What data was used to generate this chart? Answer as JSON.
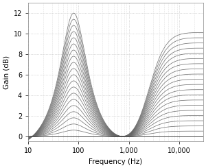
{
  "title": "",
  "xlabel": "Frequency (Hz)",
  "ylabel": "Gain (dB)",
  "xlim": [
    10,
    30000
  ],
  "ylim": [
    -0.5,
    13
  ],
  "yticks": [
    0,
    2,
    4,
    6,
    8,
    10,
    12
  ],
  "xticks": [
    10,
    100,
    1000,
    10000
  ],
  "xticklabels": [
    "10",
    "100",
    "1,000",
    "10,000"
  ],
  "num_curves": 20,
  "max_gain_low": 12.0,
  "low_peak_freq": 80,
  "null_freq": 800,
  "high_rise_freq": 2500,
  "high_rise_order": 2.5,
  "low_Q": 2.8,
  "line_color": "#666666",
  "background_color": "#ffffff",
  "grid_color": "#bbbbbb"
}
